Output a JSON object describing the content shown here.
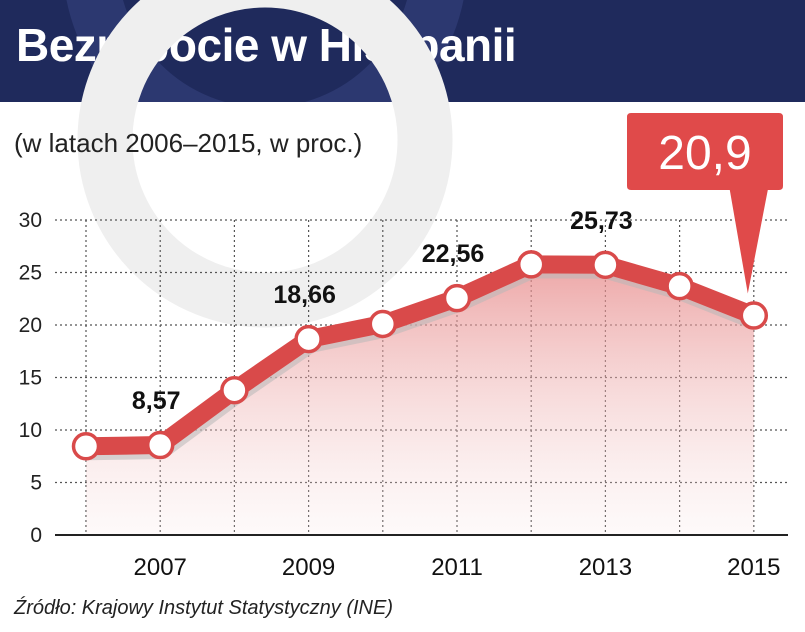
{
  "header": {
    "title": "Bezrobocie w Hiszpanii"
  },
  "subtitle": "(w latach 2006–2015, w proc.)",
  "source": "Źródło: Krajowy Instytut Statystyczny (INE)",
  "colors": {
    "header_bg": "#1f2a5c",
    "line": "#d94a4a",
    "callout": "#e04a4a",
    "fill_top": "#e78a8a"
  },
  "chart_data": {
    "type": "line",
    "x": [
      2006,
      2007,
      2008,
      2009,
      2010,
      2011,
      2012,
      2013,
      2014,
      2015
    ],
    "series": [
      {
        "values": [
          8.45,
          8.57,
          13.79,
          18.66,
          20.1,
          22.56,
          25.77,
          25.73,
          23.7,
          20.9
        ]
      }
    ],
    "x_tick_labels": [
      "2007",
      "2009",
      "2011",
      "2013",
      "2015"
    ],
    "x_tick_values": [
      2007,
      2009,
      2011,
      2013,
      2015
    ],
    "y_ticks": [
      0,
      5,
      10,
      15,
      20,
      25,
      30
    ],
    "y_tick_labels": [
      "0",
      "5",
      "10",
      "15",
      "20",
      "25",
      "30"
    ],
    "ylim": [
      0,
      30
    ],
    "grid": true,
    "annotations": [
      {
        "x": 2007,
        "text": "8,57"
      },
      {
        "x": 2009,
        "text": "18,66"
      },
      {
        "x": 2011,
        "text": "22,56"
      },
      {
        "x": 2013,
        "text": "25,73"
      }
    ],
    "callout": {
      "x": 2015,
      "text": "20,9"
    }
  }
}
